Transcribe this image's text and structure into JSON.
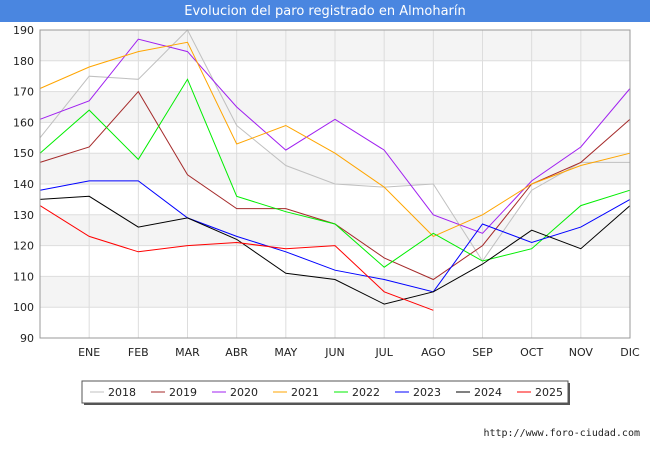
{
  "chart_data": {
    "type": "line",
    "title": "Evolucion del paro registrado en Almoharín",
    "xlabel": "",
    "ylabel": "",
    "categories": [
      "",
      "ENE",
      "FEB",
      "MAR",
      "ABR",
      "MAY",
      "JUN",
      "JUL",
      "AGO",
      "SEP",
      "OCT",
      "NOV",
      "DIC"
    ],
    "yticks": [
      90,
      100,
      110,
      120,
      130,
      140,
      150,
      160,
      170,
      180,
      190
    ],
    "ylim": [
      90,
      190
    ],
    "grid": true,
    "legend_position": "bottom",
    "series": [
      {
        "name": "2018",
        "color": "#c0c0c0",
        "values": [
          155,
          175,
          174,
          190,
          159,
          146,
          140,
          139,
          140,
          115,
          138,
          147,
          147
        ]
      },
      {
        "name": "2019",
        "color": "#a52a2a",
        "values": [
          147,
          152,
          170,
          143,
          132,
          132,
          127,
          116,
          109,
          120,
          140,
          147,
          161
        ]
      },
      {
        "name": "2020",
        "color": "#a020f0",
        "values": [
          161,
          167,
          187,
          183,
          165,
          151,
          161,
          151,
          130,
          124,
          141,
          152,
          171
        ]
      },
      {
        "name": "2021",
        "color": "#ffa500",
        "values": [
          171,
          178,
          183,
          186,
          153,
          159,
          150,
          139,
          123,
          130,
          140,
          146,
          150
        ]
      },
      {
        "name": "2022",
        "color": "#00ee00",
        "values": [
          150,
          164,
          148,
          174,
          136,
          131,
          127,
          113,
          124,
          115,
          119,
          133,
          138
        ]
      },
      {
        "name": "2023",
        "color": "#0000ff",
        "values": [
          138,
          141,
          141,
          129,
          123,
          118,
          112,
          109,
          105,
          127,
          121,
          126,
          135
        ]
      },
      {
        "name": "2024",
        "color": "#000000",
        "values": [
          135,
          136,
          126,
          129,
          122,
          111,
          109,
          101,
          105,
          114,
          125,
          119,
          133
        ]
      },
      {
        "name": "2025",
        "color": "#ff0000",
        "values": [
          133,
          123,
          118,
          120,
          121,
          119,
          120,
          105,
          99,
          null,
          null,
          null,
          null
        ]
      }
    ]
  },
  "footer": {
    "url": "http://www.foro-ciudad.com"
  }
}
